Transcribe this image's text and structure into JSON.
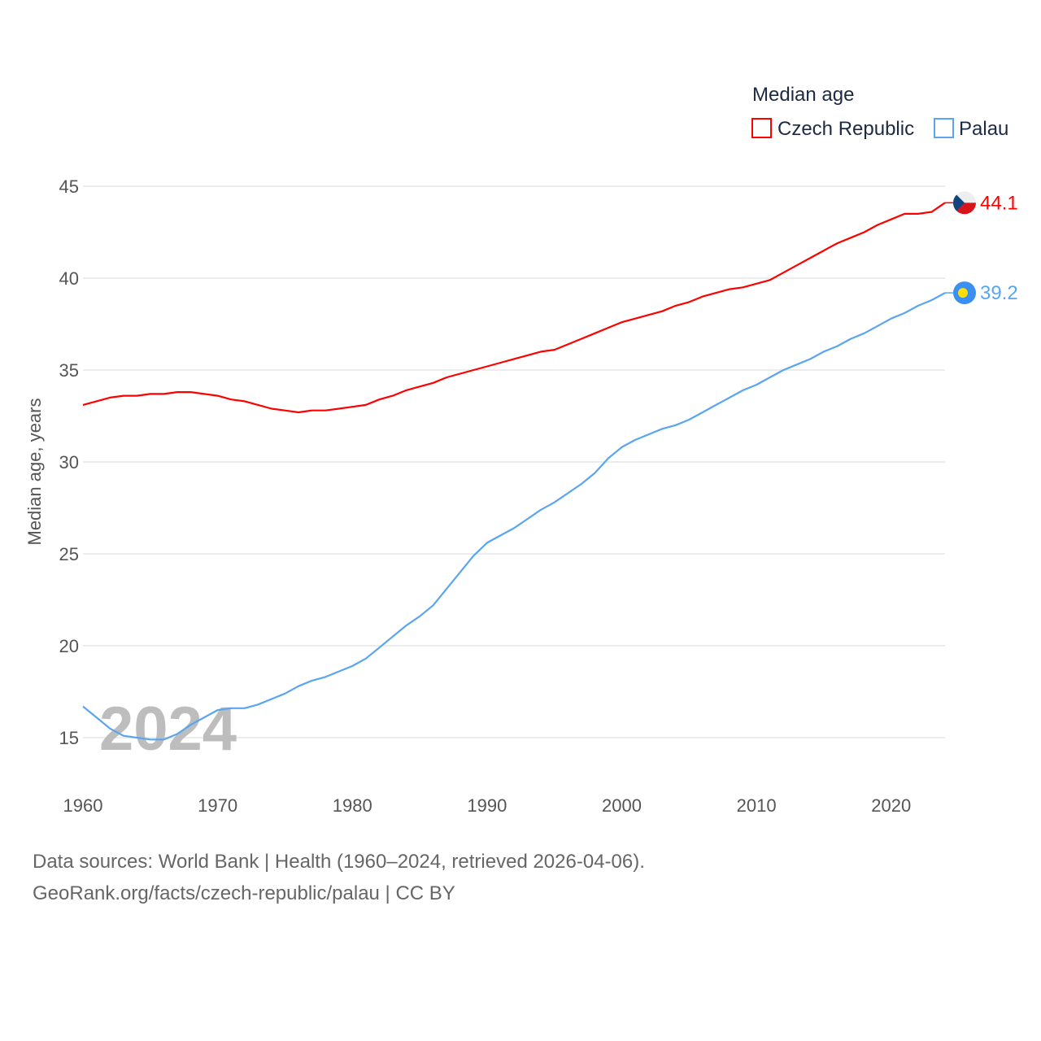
{
  "chart_data": {
    "type": "line",
    "legend_title": "Median age",
    "legend_placement": "top-right",
    "ylabel": "Median age, years",
    "xlabel": "",
    "ylim": [
      12.5,
      46
    ],
    "xlim": [
      1960,
      2024
    ],
    "yticks": [
      15,
      20,
      25,
      30,
      35,
      40,
      45
    ],
    "xticks": [
      1960,
      1970,
      1980,
      1990,
      2000,
      2010,
      2020
    ],
    "grid": true,
    "watermark_year": "2024",
    "x": [
      1960,
      1961,
      1962,
      1963,
      1964,
      1965,
      1966,
      1967,
      1968,
      1969,
      1970,
      1971,
      1972,
      1973,
      1974,
      1975,
      1976,
      1977,
      1978,
      1979,
      1980,
      1981,
      1982,
      1983,
      1984,
      1985,
      1986,
      1987,
      1988,
      1989,
      1990,
      1991,
      1992,
      1993,
      1994,
      1995,
      1996,
      1997,
      1998,
      1999,
      2000,
      2001,
      2002,
      2003,
      2004,
      2005,
      2006,
      2007,
      2008,
      2009,
      2010,
      2011,
      2012,
      2013,
      2014,
      2015,
      2016,
      2017,
      2018,
      2019,
      2020,
      2021,
      2022,
      2023,
      2024
    ],
    "series": [
      {
        "name": "Czech Republic",
        "color": "#ff0000",
        "end_label": "44.1",
        "flag": "czech-flag",
        "values": [
          33.1,
          33.3,
          33.5,
          33.6,
          33.6,
          33.7,
          33.7,
          33.8,
          33.8,
          33.7,
          33.6,
          33.4,
          33.3,
          33.1,
          32.9,
          32.8,
          32.7,
          32.8,
          32.8,
          32.9,
          33.0,
          33.1,
          33.4,
          33.6,
          33.9,
          34.1,
          34.3,
          34.6,
          34.8,
          35.0,
          35.2,
          35.4,
          35.6,
          35.8,
          36.0,
          36.1,
          36.4,
          36.7,
          37.0,
          37.3,
          37.6,
          37.8,
          38.0,
          38.2,
          38.5,
          38.7,
          39.0,
          39.2,
          39.4,
          39.5,
          39.7,
          39.9,
          40.3,
          40.7,
          41.1,
          41.5,
          41.9,
          42.2,
          42.5,
          42.9,
          43.2,
          43.5,
          43.5,
          43.6,
          44.1
        ]
      },
      {
        "name": "Palau",
        "color": "#5aa5f0",
        "end_label": "39.2",
        "flag": "palau-flag",
        "values": [
          16.7,
          16.1,
          15.5,
          15.1,
          15.0,
          14.9,
          14.9,
          15.2,
          15.7,
          16.1,
          16.5,
          16.6,
          16.6,
          16.8,
          17.1,
          17.4,
          17.8,
          18.1,
          18.3,
          18.6,
          18.9,
          19.3,
          19.9,
          20.5,
          21.1,
          21.6,
          22.2,
          23.1,
          24.0,
          24.9,
          25.6,
          26.0,
          26.4,
          26.9,
          27.4,
          27.8,
          28.3,
          28.8,
          29.4,
          30.2,
          30.8,
          31.2,
          31.5,
          31.8,
          32.0,
          32.3,
          32.7,
          33.1,
          33.5,
          33.9,
          34.2,
          34.6,
          35.0,
          35.3,
          35.6,
          36.0,
          36.3,
          36.7,
          37.0,
          37.4,
          37.8,
          38.1,
          38.5,
          38.8,
          39.2
        ]
      }
    ]
  },
  "footer": {
    "sources": "Data sources: World Bank | Health (1960–2024, retrieved 2026-04-06).",
    "link": "GeoRank.org/facts/czech-republic/palau | CC BY"
  }
}
